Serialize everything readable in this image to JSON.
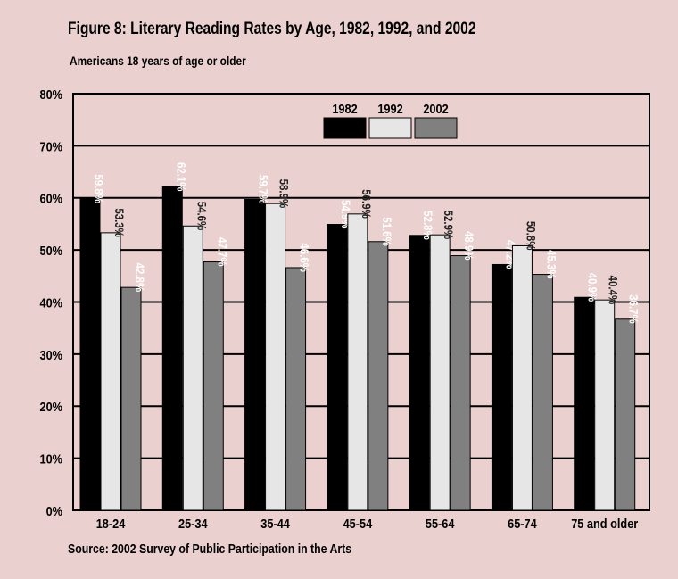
{
  "title": "Figure 8: Literary Reading Rates by Age, 1982, 1992, and 2002",
  "subtitle": "Americans 18 years of age or older",
  "source": "Source: 2002 Survey of Public Participation in the Arts",
  "colors": {
    "background": "#ead0ce",
    "plot_background": "#ead0ce",
    "series_1982": "#000000",
    "series_1992": "#e6e6e6",
    "series_2002": "#808080"
  },
  "chart_data": {
    "type": "bar",
    "title": "Figure 8: Literary Reading Rates by Age, 1982, 1992, and 2002",
    "subtitle": "Americans 18 years of age or older",
    "xlabel": "",
    "ylabel": "",
    "ylim": [
      0,
      80
    ],
    "y_ticks": [
      "0%",
      "10%",
      "20%",
      "30%",
      "40%",
      "50%",
      "60%",
      "70%",
      "80%"
    ],
    "grid": true,
    "legend_position": "top-right",
    "categories": [
      "18-24",
      "25-34",
      "35-44",
      "45-54",
      "55-64",
      "65-74",
      "75 and older"
    ],
    "series": [
      {
        "name": "1982",
        "values": [
          59.8,
          62.1,
          59.7,
          54.9,
          52.8,
          47.2,
          40.9
        ],
        "labels": [
          "59.8%",
          "62.1%",
          "59.7%",
          "54.9%",
          "52.8%",
          "47.2%",
          "40.9%"
        ]
      },
      {
        "name": "1992",
        "values": [
          53.3,
          54.6,
          58.9,
          56.9,
          52.9,
          50.8,
          40.4
        ],
        "labels": [
          "53.3%",
          "54.6%",
          "58.9%",
          "56.9%",
          "52.9%",
          "50.8%",
          "40.4%"
        ]
      },
      {
        "name": "2002",
        "values": [
          42.8,
          47.7,
          46.6,
          51.6,
          48.9,
          45.3,
          36.7
        ],
        "labels": [
          "42.8%",
          "47.7%",
          "46.6%",
          "51.6%",
          "48.9%",
          "45.3%",
          "36.7%"
        ]
      }
    ]
  }
}
